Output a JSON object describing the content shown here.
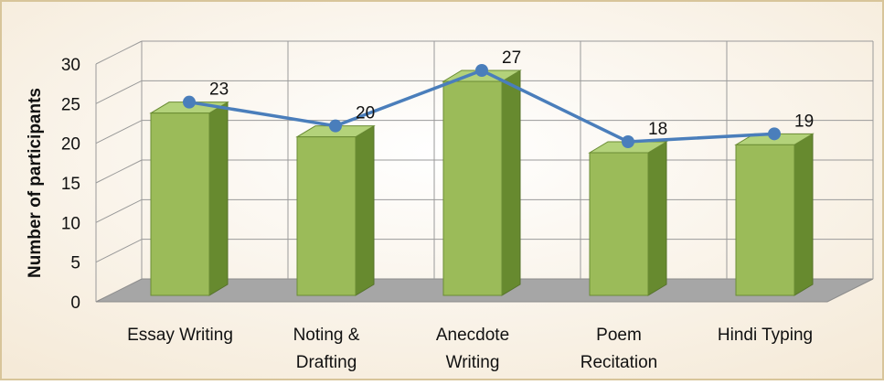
{
  "chart_data": {
    "type": "bar",
    "y_label": "Number of  participants",
    "categories": [
      "Essay Writing",
      "Noting &\nDrafting",
      "Anecdote\nWriting",
      "Poem\nRecitation",
      "Hindi Typing"
    ],
    "values": [
      23,
      20,
      27,
      18,
      19
    ],
    "color": "#9bbb59",
    "line_color": "#4a7ebb",
    "ylim": [
      0,
      30
    ],
    "yticks": [
      0,
      5,
      10,
      15,
      20,
      25,
      30
    ],
    "grid": true
  }
}
